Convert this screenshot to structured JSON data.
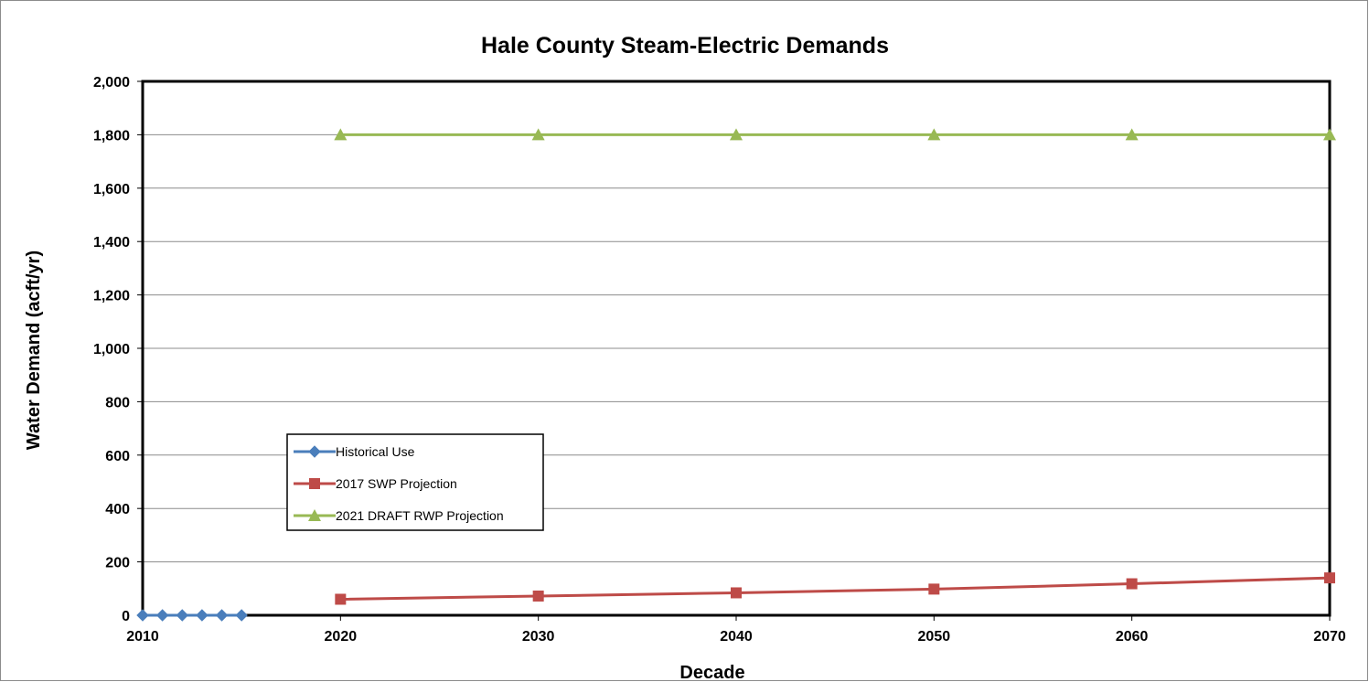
{
  "chart_data": {
    "type": "line",
    "title": "Hale County Steam-Electric Demands",
    "xlabel": "Decade",
    "ylabel": "Water Demand (acft/yr)",
    "xlim": [
      2010,
      2070
    ],
    "ylim": [
      0,
      2000
    ],
    "x_ticks": [
      2010,
      2020,
      2030,
      2040,
      2050,
      2060,
      2070
    ],
    "y_ticks": [
      0,
      200,
      400,
      600,
      800,
      1000,
      1200,
      1400,
      1600,
      1800,
      2000
    ],
    "x_tick_labels": [
      "2010",
      "2020",
      "2030",
      "2040",
      "2050",
      "2060",
      "2070"
    ],
    "y_tick_labels": [
      "0",
      "200",
      "400",
      "600",
      "800",
      "1,000",
      "1,200",
      "1,400",
      "1,600",
      "1,800",
      "2,000"
    ],
    "grid": "horizontal",
    "legend_position": "bottom-left",
    "series": [
      {
        "name": "Historical Use",
        "color": "#4a7ebb",
        "marker": "diamond",
        "x": [
          2010,
          2011,
          2012,
          2013,
          2014,
          2015
        ],
        "y": [
          0,
          0,
          0,
          0,
          0,
          0
        ]
      },
      {
        "name": "2017 SWP Projection",
        "color": "#be4b48",
        "marker": "square",
        "x": [
          2020,
          2030,
          2040,
          2050,
          2060,
          2070
        ],
        "y": [
          60,
          72,
          84,
          98,
          118,
          140
        ]
      },
      {
        "name": "2021 DRAFT RWP Projection",
        "color": "#98b954",
        "marker": "triangle",
        "x": [
          2020,
          2030,
          2040,
          2050,
          2060,
          2070
        ],
        "y": [
          1800,
          1800,
          1800,
          1800,
          1800,
          1800
        ]
      }
    ]
  }
}
